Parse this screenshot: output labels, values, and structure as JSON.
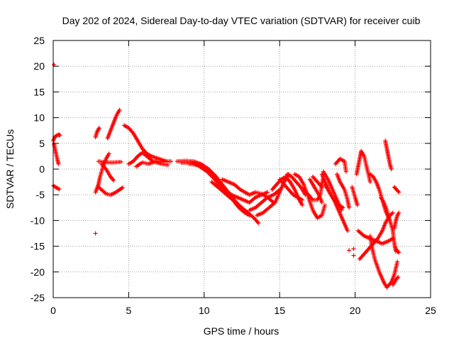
{
  "chart_data": {
    "type": "scatter",
    "title": "Day 202 of 2024, Sidereal Day-to-day VTEC variation (SDTVAR) for receiver cuib",
    "xlabel": "GPS time / hours",
    "ylabel": "SDTVAR / TECUs",
    "xlim": [
      0,
      25
    ],
    "ylim": [
      -25,
      25
    ],
    "xticks": [
      0,
      5,
      10,
      15,
      20,
      25
    ],
    "yticks": [
      -25,
      -20,
      -15,
      -10,
      -5,
      0,
      5,
      10,
      15,
      20,
      25
    ],
    "grid": true,
    "marker": "+",
    "color": "#ff0000",
    "isolated_points": [
      {
        "x": 0.05,
        "y": 20.3
      },
      {
        "x": 2.8,
        "y": -12.5
      },
      {
        "x": 19.6,
        "y": -15.8
      },
      {
        "x": 19.9,
        "y": -15.5
      },
      {
        "x": 19.9,
        "y": -16.8
      }
    ],
    "tracks": [
      [
        [
          0.0,
          5.5
        ],
        [
          0.1,
          6.2
        ],
        [
          0.2,
          6.5
        ],
        [
          0.35,
          6.7
        ],
        [
          0.45,
          6.6
        ]
      ],
      [
        [
          0.05,
          5.0
        ],
        [
          0.15,
          3.5
        ],
        [
          0.25,
          2.2
        ],
        [
          0.35,
          1.0
        ]
      ],
      [
        [
          0.0,
          -3.2
        ],
        [
          0.2,
          -3.6
        ],
        [
          0.4,
          -3.9
        ]
      ],
      [
        [
          2.8,
          6.2
        ],
        [
          2.9,
          7.2
        ],
        [
          3.05,
          8.0
        ]
      ],
      [
        [
          2.8,
          -4.5
        ],
        [
          3.0,
          -3.0
        ],
        [
          3.1,
          -1.5
        ],
        [
          3.3,
          0.5
        ],
        [
          3.5,
          2.0
        ],
        [
          3.7,
          3.0
        ]
      ],
      [
        [
          3.0,
          -3.5
        ],
        [
          3.2,
          -4.0
        ],
        [
          3.5,
          -4.8
        ],
        [
          3.8,
          -5.0
        ],
        [
          4.1,
          -4.6
        ],
        [
          4.4,
          -4.0
        ],
        [
          4.6,
          -3.6
        ]
      ],
      [
        [
          3.0,
          1.5
        ],
        [
          3.5,
          1.3
        ],
        [
          4.0,
          1.3
        ],
        [
          4.5,
          1.4
        ]
      ],
      [
        [
          3.2,
          1.0
        ],
        [
          3.5,
          0.0
        ],
        [
          3.8,
          -1.5
        ],
        [
          4.0,
          -2.2
        ]
      ],
      [
        [
          3.6,
          6.0
        ],
        [
          3.8,
          7.5
        ],
        [
          4.0,
          9.0
        ],
        [
          4.2,
          10.5
        ],
        [
          4.4,
          11.5
        ]
      ],
      [
        [
          5.0,
          1.0
        ],
        [
          5.3,
          1.5
        ],
        [
          5.6,
          2.5
        ],
        [
          5.9,
          3.2
        ],
        [
          6.2,
          2.5
        ],
        [
          6.6,
          1.5
        ],
        [
          7.0,
          1.5
        ],
        [
          7.5,
          1.5
        ]
      ],
      [
        [
          4.7,
          8.5
        ],
        [
          5.0,
          8.0
        ],
        [
          5.3,
          7.0
        ],
        [
          5.6,
          5.5
        ],
        [
          5.9,
          4.0
        ],
        [
          6.2,
          3.0
        ],
        [
          6.5,
          2.5
        ],
        [
          7.0,
          2.0
        ],
        [
          7.5,
          1.5
        ],
        [
          7.8,
          1.5
        ]
      ],
      [
        [
          5.5,
          0.5
        ],
        [
          5.9,
          1.3
        ],
        [
          6.3,
          1.0
        ],
        [
          6.7,
          1.4
        ],
        [
          7.2,
          1.0
        ],
        [
          7.6,
          0.8
        ]
      ],
      [
        [
          8.2,
          1.5
        ],
        [
          8.8,
          1.6
        ],
        [
          9.3,
          1.5
        ],
        [
          9.8,
          1.0
        ],
        [
          10.3,
          0.0
        ],
        [
          10.8,
          -1.5
        ],
        [
          11.2,
          -3.0
        ],
        [
          11.6,
          -4.5
        ],
        [
          12.0,
          -6.0
        ],
        [
          12.3,
          -7.0
        ]
      ],
      [
        [
          8.5,
          1.2
        ],
        [
          9.2,
          1.3
        ],
        [
          9.7,
          0.5
        ],
        [
          10.2,
          -0.5
        ],
        [
          10.7,
          -2.0
        ],
        [
          11.1,
          -3.5
        ],
        [
          11.5,
          -5.0
        ],
        [
          11.9,
          -6.0
        ],
        [
          12.3,
          -7.5
        ],
        [
          12.7,
          -8.5
        ],
        [
          13.0,
          -9.0
        ]
      ],
      [
        [
          9.0,
          1.0
        ],
        [
          9.6,
          0.8
        ],
        [
          10.1,
          0.0
        ],
        [
          10.6,
          -1.0
        ],
        [
          11.0,
          -2.5
        ],
        [
          11.4,
          -4.0
        ],
        [
          11.8,
          -5.0
        ],
        [
          12.2,
          -5.5
        ],
        [
          12.6,
          -6.0
        ],
        [
          13.0,
          -6.5
        ],
        [
          13.4,
          -5.5
        ],
        [
          13.8,
          -5.0
        ],
        [
          14.2,
          -4.5
        ]
      ],
      [
        [
          10.5,
          -2.5
        ],
        [
          10.9,
          -3.5
        ],
        [
          11.3,
          -4.5
        ],
        [
          11.7,
          -5.5
        ],
        [
          12.1,
          -6.5
        ],
        [
          12.5,
          -7.5
        ],
        [
          12.9,
          -8.5
        ],
        [
          13.3,
          -9.5
        ],
        [
          13.6,
          -10.5
        ]
      ],
      [
        [
          11.2,
          -2.0
        ],
        [
          11.6,
          -2.5
        ],
        [
          12.0,
          -3.0
        ],
        [
          12.4,
          -4.0
        ],
        [
          12.7,
          -4.5
        ],
        [
          13.0,
          -5.0
        ],
        [
          13.4,
          -4.5
        ],
        [
          13.8,
          -4.8
        ],
        [
          14.2,
          -5.5
        ],
        [
          14.6,
          -6.5
        ]
      ],
      [
        [
          13.0,
          -8.0
        ],
        [
          13.4,
          -7.5
        ],
        [
          13.8,
          -6.5
        ],
        [
          14.2,
          -5.5
        ],
        [
          14.6,
          -5.0
        ],
        [
          15.0,
          -4.0
        ]
      ],
      [
        [
          13.5,
          -9.0
        ],
        [
          13.9,
          -8.5
        ],
        [
          14.3,
          -7.5
        ],
        [
          14.7,
          -6.5
        ],
        [
          15.0,
          -4.5
        ],
        [
          15.3,
          -2.5
        ],
        [
          15.6,
          -1.0
        ]
      ],
      [
        [
          14.5,
          -4.0
        ],
        [
          14.8,
          -3.0
        ],
        [
          15.1,
          -2.0
        ],
        [
          15.4,
          -1.5
        ],
        [
          15.7,
          -2.5
        ],
        [
          16.0,
          -4.0
        ],
        [
          16.3,
          -6.0
        ],
        [
          16.5,
          -7.0
        ]
      ],
      [
        [
          15.0,
          -2.0
        ],
        [
          15.3,
          -3.0
        ],
        [
          15.6,
          -4.0
        ],
        [
          15.9,
          -5.0
        ],
        [
          16.2,
          -5.5
        ],
        [
          16.5,
          -6.0
        ]
      ],
      [
        [
          15.5,
          -1.0
        ],
        [
          15.8,
          -1.5
        ],
        [
          16.1,
          -2.5
        ],
        [
          16.4,
          -3.5
        ],
        [
          16.7,
          -5.0
        ]
      ],
      [
        [
          16.0,
          -1.0
        ],
        [
          16.3,
          -1.5
        ],
        [
          16.6,
          -3.0
        ],
        [
          16.9,
          -5.5
        ],
        [
          17.2,
          -8.0
        ],
        [
          17.5,
          -9.5
        ],
        [
          17.8,
          -9.0
        ],
        [
          18.0,
          -7.0
        ]
      ],
      [
        [
          16.6,
          -4.0
        ],
        [
          16.9,
          -5.0
        ],
        [
          17.2,
          -6.0
        ],
        [
          17.5,
          -6.0
        ],
        [
          17.7,
          -5.0
        ],
        [
          17.8,
          -3.0
        ],
        [
          17.9,
          -1.5
        ]
      ],
      [
        [
          17.0,
          -2.0
        ],
        [
          17.3,
          -3.5
        ],
        [
          17.6,
          -5.0
        ],
        [
          17.8,
          -6.5
        ]
      ],
      [
        [
          17.2,
          -1.5
        ],
        [
          17.5,
          -2.5
        ],
        [
          17.8,
          -3.5
        ]
      ],
      [
        [
          17.8,
          -1.0
        ],
        [
          18.0,
          -2.5
        ],
        [
          18.3,
          -4.5
        ],
        [
          18.6,
          -6.0
        ],
        [
          18.9,
          -8.0
        ],
        [
          19.2,
          -10.0
        ],
        [
          19.5,
          -12.0
        ]
      ],
      [
        [
          17.9,
          -0.5
        ],
        [
          18.2,
          -2.0
        ],
        [
          18.5,
          -4.0
        ],
        [
          18.8,
          -6.0
        ],
        [
          19.1,
          -8.0
        ]
      ],
      [
        [
          18.0,
          -3.0
        ],
        [
          18.3,
          -4.5
        ],
        [
          18.6,
          -6.0
        ],
        [
          18.9,
          -7.0
        ],
        [
          19.2,
          -7.5
        ]
      ],
      [
        [
          18.7,
          1.0
        ],
        [
          19.0,
          2.0
        ],
        [
          19.3,
          1.5
        ],
        [
          19.4,
          -0.5
        ]
      ],
      [
        [
          18.8,
          -1.0
        ],
        [
          19.0,
          -2.5
        ],
        [
          19.3,
          -4.0
        ],
        [
          19.5,
          -6.0
        ],
        [
          19.6,
          -7.5
        ]
      ],
      [
        [
          19.8,
          -3.5
        ],
        [
          20.0,
          -5.5
        ],
        [
          20.15,
          -7.0
        ]
      ],
      [
        [
          20.1,
          -1.0
        ],
        [
          20.2,
          0.5
        ],
        [
          20.3,
          2.0
        ],
        [
          20.4,
          3.5
        ],
        [
          20.6,
          2.5
        ],
        [
          20.8,
          0.0
        ],
        [
          21.0,
          -2.5
        ]
      ],
      [
        [
          20.2,
          -12.0
        ],
        [
          20.6,
          -13.0
        ],
        [
          21.0,
          -13.5
        ],
        [
          21.4,
          -14.0
        ],
        [
          21.8,
          -14.5
        ],
        [
          22.2,
          -14.0
        ],
        [
          22.5,
          -13.5
        ]
      ],
      [
        [
          20.3,
          -17.5
        ],
        [
          20.6,
          -16.5
        ],
        [
          20.9,
          -15.5
        ],
        [
          21.2,
          -14.5
        ],
        [
          21.5,
          -13.5
        ],
        [
          21.8,
          -12.0
        ],
        [
          22.0,
          -10.5
        ],
        [
          22.3,
          -9.0
        ],
        [
          22.5,
          -8.5
        ]
      ],
      [
        [
          21.0,
          -13.0
        ],
        [
          21.1,
          -15.0
        ],
        [
          21.3,
          -17.5
        ],
        [
          21.6,
          -20.0
        ],
        [
          21.9,
          -22.0
        ],
        [
          22.1,
          -23.0
        ],
        [
          22.4,
          -22.0
        ],
        [
          22.6,
          -20.5
        ],
        [
          22.8,
          -18.0
        ]
      ],
      [
        [
          21.0,
          -1.0
        ],
        [
          21.2,
          -1.5
        ],
        [
          21.4,
          -2.5
        ],
        [
          21.6,
          -4.0
        ],
        [
          21.8,
          -6.0
        ],
        [
          22.0,
          -8.0
        ],
        [
          22.3,
          -10.0
        ]
      ],
      [
        [
          21.7,
          -5.5
        ],
        [
          21.9,
          -6.5
        ],
        [
          22.1,
          -8.0
        ],
        [
          22.3,
          -10.0
        ],
        [
          22.5,
          -12.0
        ],
        [
          22.6,
          -14.5
        ],
        [
          22.7,
          -16.0
        ]
      ],
      [
        [
          22.0,
          5.5
        ],
        [
          22.1,
          4.0
        ],
        [
          22.2,
          2.5
        ],
        [
          22.3,
          1.0
        ],
        [
          22.4,
          0.0
        ]
      ],
      [
        [
          22.6,
          -3.5
        ],
        [
          22.75,
          -4.0
        ],
        [
          22.9,
          -4.5
        ]
      ],
      [
        [
          22.7,
          -15.5
        ],
        [
          22.8,
          -16.0
        ],
        [
          22.9,
          -16.2
        ]
      ],
      [
        [
          22.5,
          -22.5
        ],
        [
          22.7,
          -21.5
        ],
        [
          22.85,
          -21.0
        ]
      ],
      [
        [
          22.6,
          -11.5
        ],
        [
          22.7,
          -10.0
        ],
        [
          22.8,
          -9.0
        ],
        [
          22.9,
          -8.5
        ]
      ]
    ]
  }
}
